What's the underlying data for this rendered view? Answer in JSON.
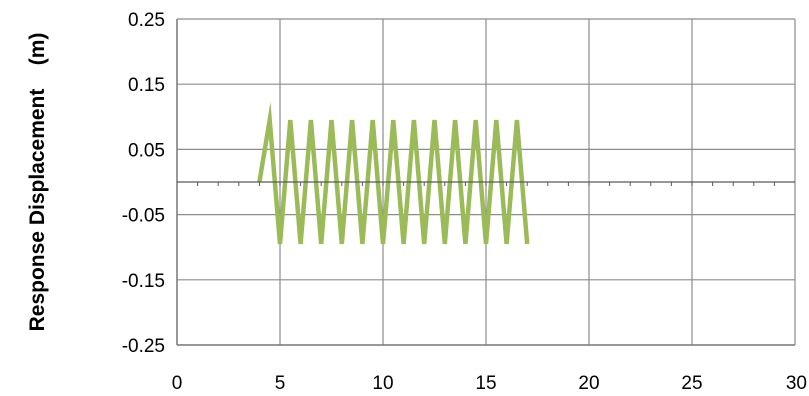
{
  "chart_data": {
    "type": "line",
    "title": "",
    "xlabel": "",
    "ylabel": "Response Displacement    (m)",
    "xlim": [
      0,
      30
    ],
    "ylim": [
      -0.25,
      0.25
    ],
    "x_ticks": [
      "0",
      "5",
      "10",
      "15",
      "20",
      "25",
      "30"
    ],
    "y_ticks": [
      "0.25",
      "0.15",
      "0.05",
      "-0.05",
      "-0.15",
      "-0.25"
    ],
    "grid": true,
    "legend": "none",
    "series": [
      {
        "color": "#9bbb59",
        "x": [
          4.0,
          4.5,
          5.0,
          5.5,
          6.0,
          6.5,
          7.0,
          7.5,
          8.0,
          8.5,
          9.0,
          9.5,
          10.0,
          10.5,
          11.0,
          11.5,
          12.0,
          12.5,
          13.0,
          13.5,
          14.0,
          14.5,
          15.0,
          15.5,
          16.0,
          16.5,
          17.0
        ],
        "y": [
          0.0,
          0.095,
          -0.095,
          0.095,
          -0.095,
          0.095,
          -0.095,
          0.095,
          -0.095,
          0.095,
          -0.095,
          0.095,
          -0.095,
          0.095,
          -0.095,
          0.095,
          -0.095,
          0.095,
          -0.095,
          0.095,
          -0.095,
          0.095,
          -0.095,
          0.095,
          -0.095,
          0.095,
          -0.095
        ]
      },
      {
        "color": "#595959",
        "style": "dotted",
        "x": [
          0,
          30
        ],
        "y": [
          0,
          0
        ]
      }
    ]
  }
}
